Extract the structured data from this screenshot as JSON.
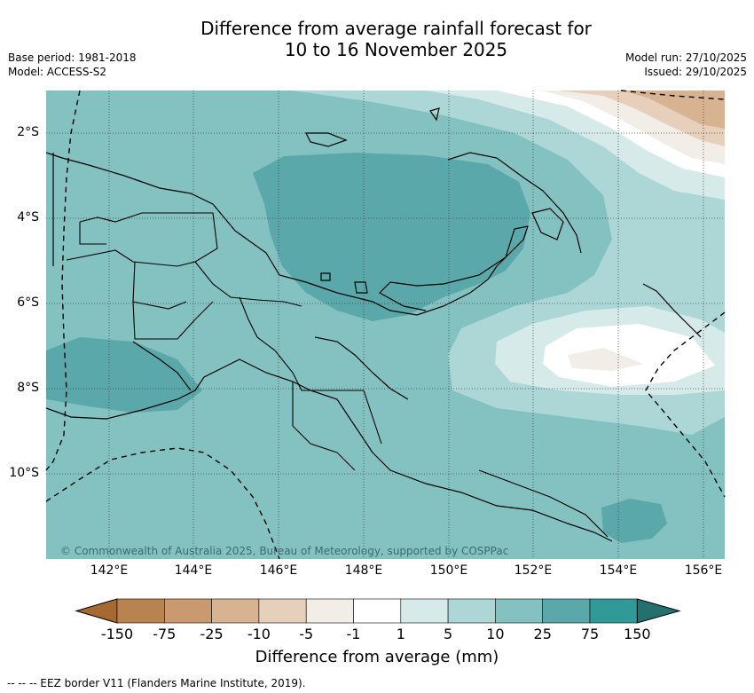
{
  "title_line1": "Difference from average rainfall forecast for",
  "title_line2": "10 to 16 November 2025",
  "base_period": "Base period: 1981-2018",
  "model": "Model: ACCESS-S2",
  "model_run": "Model run: 27/10/2025",
  "issued": "Issued: 29/10/2025",
  "copyright": "© Commonwealth of Australia 2025, Bureau of Meteorology, supported by COSPPac",
  "longitudes": [
    "142°E",
    "144°E",
    "146°E",
    "148°E",
    "150°E",
    "152°E",
    "154°E",
    "156°E"
  ],
  "latitudes": [
    "2°S",
    "4°S",
    "6°S",
    "8°S",
    "10°S"
  ],
  "colorbar": {
    "title": "Difference from average (mm)",
    "ticks": [
      "-150",
      "-75",
      "-25",
      "-10",
      "-5",
      "-1",
      "1",
      "5",
      "10",
      "25",
      "75",
      "150"
    ],
    "colors": [
      "#a6692f",
      "#b8834e",
      "#c99970",
      "#d7b391",
      "#e6cfbb",
      "#f2ede6",
      "#ffffff",
      "#d6ebe9",
      "#acd7d6",
      "#84c2c1",
      "#5ba8aa",
      "#309a99",
      "#24706f"
    ]
  },
  "legend_footer": "--  --  -- EEZ border V11 (Flanders Marine Institute, 2019)."
}
